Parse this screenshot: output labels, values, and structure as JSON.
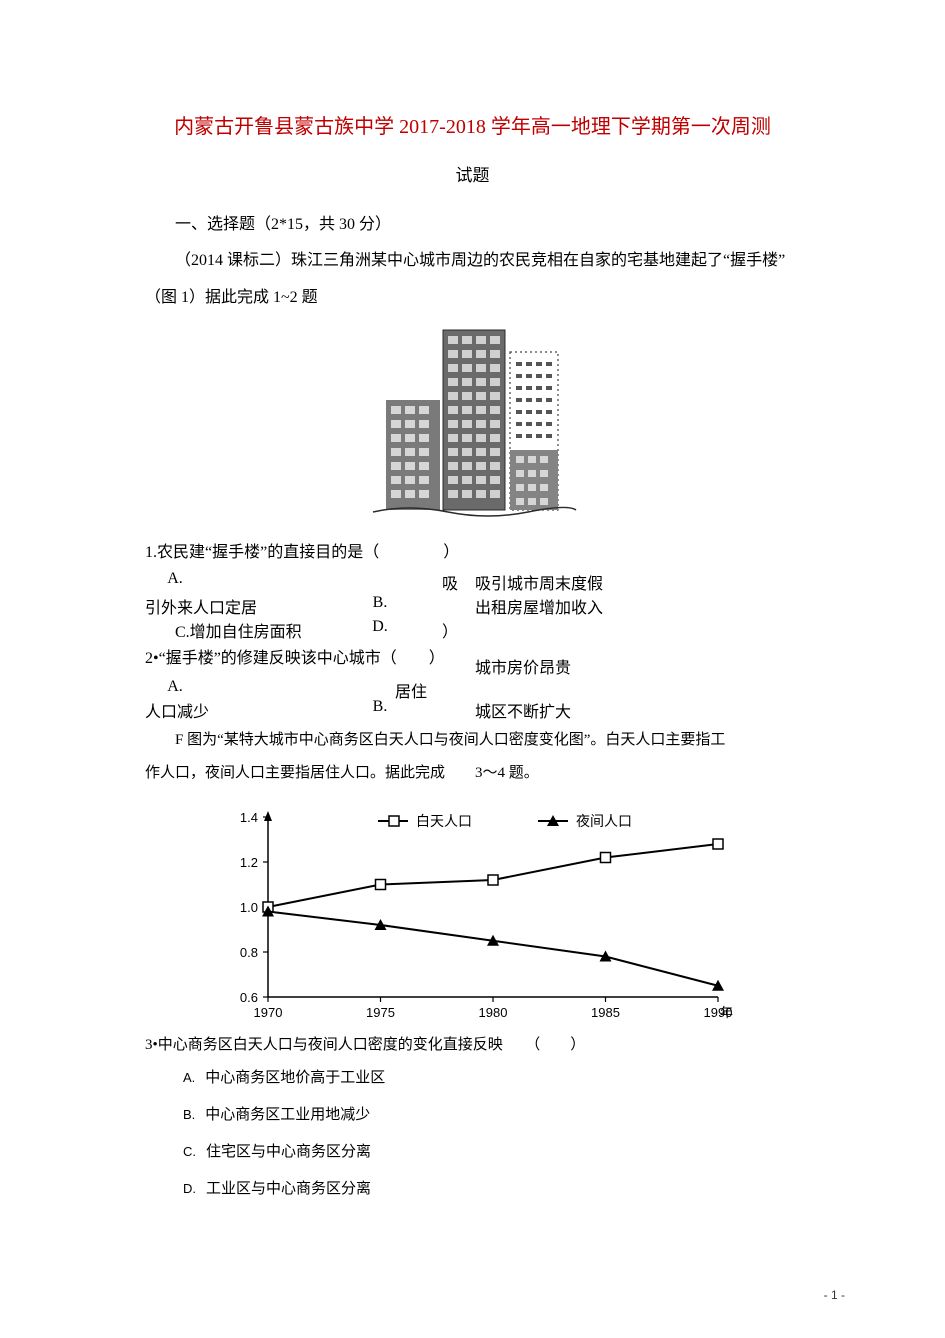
{
  "title": "内蒙古开鲁县蒙古族中学 2017-2018 学年高一地理下学期第一次周测",
  "subtitle": "试题",
  "section_header": "一、选择题（2*15，共 30 分）",
  "context_line1": "（2014 课标二）珠江三角洲某中心城市周边的农民竞相在自家的宅基地建起了“握手楼”",
  "context_line2": "（图 1）据此完成 1~2 题",
  "q1": {
    "stem": "1.农民建“握手楼”的直接目的是（　　　　）",
    "optA_label": "A.",
    "optA_text_pre": "吸",
    "optA_text_post": "引外来人口定居",
    "optB_label": "B.",
    "optB_text": "吸引城市周末度假",
    "optC_full": "C.增加自住房面积",
    "optD_label": "D.",
    "optD_text": "出租房屋增加收入"
  },
  "q2": {
    "stem": "2•“握手楼”的修建反映该中心城市（　　）",
    "optA_label": "A.",
    "optA_text_pre": "居住",
    "optA_text_post": "人口减少",
    "optB_label": "B.",
    "optB_text": "城市房价昂贵",
    "optD_text": "城区不断扩大"
  },
  "context3_line1": "　　F 图为“某特大城市中心商务区白天人口与夜间人口密度变化图”。白天人口主要指工",
  "context3_line2": "作人口，夜间人口主要指居住人口。据此完成　　3～4 题。",
  "chart": {
    "legend": {
      "day": "白天人口",
      "night": "夜间人口"
    },
    "ylim": [
      0.6,
      1.4
    ],
    "y_ticks": [
      0.6,
      0.8,
      1.0,
      1.2,
      1.4
    ],
    "x_ticks": [
      "1970",
      "1975",
      "1980",
      "1985",
      "1990"
    ],
    "x_unit": "年",
    "day_series": [
      1.0,
      1.1,
      1.12,
      1.22,
      1.28
    ],
    "night_series": [
      0.98,
      0.92,
      0.85,
      0.78,
      0.65
    ],
    "colors": {
      "line": "#000000",
      "text": "#000000",
      "bg": "#ffffff",
      "axis": "#000000",
      "tick": "#000000"
    },
    "marker": {
      "day": "square-open",
      "night": "triangle-filled"
    },
    "line_width": 2,
    "font_size_axis": 13,
    "font_size_legend": 14
  },
  "q3": {
    "stem": "3•中心商务区白天人口与夜间人口密度的变化直接反映　　（　　）",
    "A": "中心商务区地价高于工业区",
    "B": "中心商务区工业用地减少",
    "C": "住宅区与中心商务区分离",
    "D": "工业区与中心商务区分离",
    "labels": {
      "A": "A.",
      "B": "B.",
      "C": "C.",
      "D": "D."
    }
  },
  "page_number": "- 1 -",
  "building_svg": {
    "bg": "#ffffff",
    "fill": "#5a5a5a",
    "light": "#c8c8c8",
    "dark": "#2b2b2b"
  }
}
